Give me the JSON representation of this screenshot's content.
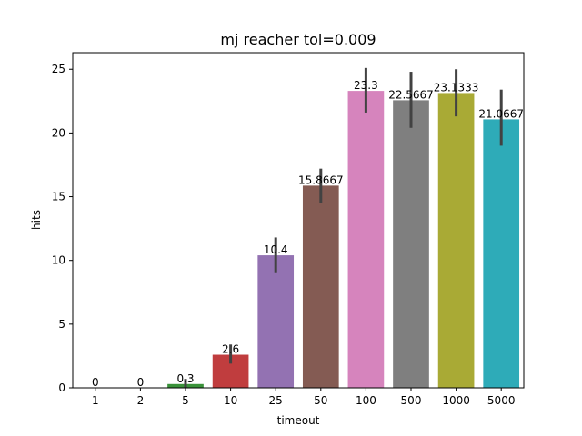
{
  "chart_data": {
    "type": "bar",
    "title": "mj reacher tol=0.009",
    "xlabel": "timeout",
    "ylabel": "hits",
    "categories": [
      "1",
      "2",
      "5",
      "10",
      "25",
      "50",
      "100",
      "500",
      "1000",
      "5000"
    ],
    "values": [
      0,
      0,
      0.3,
      2.6,
      10.4,
      15.8667,
      23.3,
      22.5667,
      23.1333,
      21.0667
    ],
    "value_labels": [
      "0",
      "0",
      "0.3",
      "2.6",
      "10.4",
      "15.8667",
      "23.3",
      "22.5667",
      "23.1333",
      "21.0667"
    ],
    "error_low": [
      0,
      0,
      0.0,
      1.9,
      9.0,
      14.5,
      21.6,
      20.4,
      21.3,
      19.0
    ],
    "error_high": [
      0,
      0,
      0.7,
      3.4,
      11.8,
      17.2,
      25.1,
      24.8,
      25.0,
      23.4
    ],
    "colors": [
      "#1f77b4",
      "#ff7f0e",
      "#3a923a",
      "#c03d3e",
      "#9372b2",
      "#845b53",
      "#d684bd",
      "#7f7f7f",
      "#a9aa35",
      "#2eabb8"
    ],
    "error_color": "#424242",
    "ylim": [
      0,
      26.3
    ],
    "yticks": [
      0,
      5,
      10,
      15,
      20,
      25
    ],
    "grid": false,
    "legend": "none"
  }
}
